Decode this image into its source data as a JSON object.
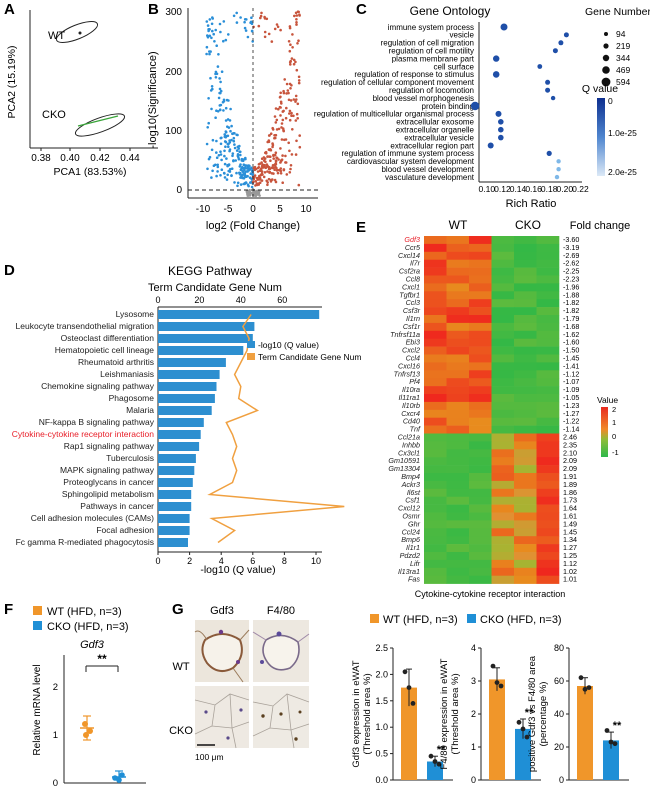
{
  "colors": {
    "blue": "#1f8fd6",
    "orange": "#f0962a",
    "red_gene": "#e8202a",
    "pca_ring": "#222",
    "volc_blue": "#2a8fd8",
    "volc_red": "#c8553d",
    "kegg_bar": "#2d8fd0",
    "kegg_line": "#f0a040",
    "go_dot": "#1f4fa8",
    "go_light": "#7fb8e8"
  },
  "panel_labels": {
    "a": "A",
    "b": "B",
    "c": "C",
    "d": "D",
    "e": "E",
    "f": "F",
    "g": "G"
  },
  "panelA": {
    "wt": "WT",
    "cko": "CKO",
    "ylabel": "PCA2 (15.19%)",
    "xlabel": "PCA1 (83.53%)",
    "xticks": [
      "0.38",
      "0.40",
      "0.42",
      "0.44"
    ]
  },
  "panelB": {
    "ylabel": "-log10(Significance)",
    "xlabel": "log2 (Fold Change)",
    "yticks": [
      "0",
      "100",
      "200",
      "300"
    ],
    "xticks": [
      "-10",
      "-5",
      "0",
      "5",
      "10"
    ]
  },
  "panelC": {
    "title": "Gene Ontology",
    "xlabel": "Rich Ratio",
    "terms": [
      "immune system process",
      "vesicle",
      "regulation of cell migration",
      "regulation of cell motility",
      "plasma membrane part",
      "cell surface",
      "regulation of response to stimulus",
      "regulation of cellular component movement",
      "regulation of locomotion",
      "blood vessel morphogenesis",
      "protein binding",
      "regulation of multicellular organismal process",
      "extracellular exosome",
      "extracellular organelle",
      "extracellular vesicle",
      "extracellular region part",
      "regulation of immune system process",
      "cardiovascular system development",
      "blood vessel development",
      "vasculature development"
    ],
    "xticks": [
      "0.10",
      "0.12",
      "0.14",
      "0.16",
      "0.18",
      "0.20",
      "0.22"
    ],
    "gene_number_title": "Gene Number",
    "gene_sizes": [
      "94",
      "219",
      "344",
      "469",
      "594"
    ],
    "q_title": "Q value",
    "q_ticks": [
      "0",
      "1.0e-25",
      "2.0e-25"
    ]
  },
  "panelD": {
    "title": "KEGG Pathway",
    "top_axis": "Term Candidate Gene Num",
    "top_ticks": [
      "0",
      "20",
      "40",
      "60"
    ],
    "bottom_ticks": [
      "0",
      "2",
      "4",
      "6",
      "8",
      "10"
    ],
    "xlabel": "-log10 (Q value)",
    "legend_bar": "-log10 (Q value)",
    "legend_line": "Term Candidate Gene Num",
    "highlight": "Cytokine-cytokine receptor interaction",
    "pathways": [
      "Lysosome",
      "Leukocyte transendothelial migration",
      "Osteoclast differentiation",
      "Hematopoietic cell lineage",
      "Rheumatoid arthritis",
      "Leishmaniasis",
      "Chemokine signaling pathway",
      "Phagosome",
      "Malaria",
      "NF-kappa B signaling pathway",
      "Cytokine-cytokine receptor interaction",
      "Rap1 signaling pathway",
      "Tuberculosis",
      "MAPK signaling pathway",
      "Proteoglycans in cancer",
      "Sphingolipid metabolism",
      "Pathways in cancer",
      "Cell adhesion molecules (CAMs)",
      "Focal adhesion",
      "Fc gamma R-mediated phagocytosis"
    ]
  },
  "panelE": {
    "wt": "WT",
    "cko": "CKO",
    "fold_title": "Fold change",
    "xlabel": "Cytokine-cytokine receptor interaction",
    "value_title": "Value",
    "value_ticks": [
      "2",
      "1",
      "0",
      "-1"
    ],
    "highlight": "Gdf3",
    "genes": [
      "Gdf3",
      "Ccr5",
      "Cxcl14",
      "Il7r",
      "Csf2ra",
      "Ccl8",
      "Cxcl1",
      "Tgfbr1",
      "Ccl3",
      "Csf3r",
      "Il1rn",
      "Csf1r",
      "Tnfrsf11a",
      "Ebi3",
      "Cxcl2",
      "Ccl4",
      "Cxcl16",
      "Tnfrsf13",
      "Pf4",
      "Il10ra",
      "Il11ra1",
      "Il10rb",
      "Cxcr4",
      "Cd40",
      "Tnf",
      "Ccl21a",
      "Inhbb",
      "Cx3cl1",
      "Gm10591",
      "Gm13304",
      "Bmp4",
      "Ackr3",
      "Il6st",
      "Csf1",
      "Cxcl12",
      "Osmr",
      "Ghr",
      "Ccl24",
      "Bmp6",
      "Il1r1",
      "Pdzd2",
      "Lifr",
      "Il13ra1",
      "Fas"
    ],
    "folds": [
      "-3.60",
      "-3.19",
      "-2.69",
      "-2.62",
      "-2.25",
      "-2.23",
      "-1.96",
      "-1.88",
      "-1.82",
      "-1.82",
      "-1.79",
      "-1.68",
      "-1.62",
      "-1.60",
      "-1.50",
      "-1.45",
      "-1.41",
      "-1.12",
      "-1.07",
      "-1.09",
      "-1.05",
      "-1.23",
      "-1.27",
      "-1.22",
      "-1.14",
      "2.46",
      "2.35",
      "2.10",
      "2.09",
      "2.09",
      "1.91",
      "1.89",
      "1.86",
      "1.73",
      "1.64",
      "1.61",
      "1.49",
      "1.45",
      "1.34",
      "1.27",
      "1.25",
      "1.12",
      "1.02",
      "1.01"
    ]
  },
  "panelF": {
    "legend_wt": "WT (HFD, n=3)",
    "legend_cko": "CKO (HFD, n=3)",
    "title": "Gdf3",
    "ylabel": "Relative mRNA level",
    "yticks": [
      "0",
      "1",
      "2"
    ],
    "sig": "**"
  },
  "panelG": {
    "col1": "Gdf3",
    "col2": "F4/80",
    "row1": "WT",
    "row2": "CKO",
    "scale": "100 μm",
    "legend_wt": "WT (HFD, n=3)",
    "legend_cko": "CKO (HFD, n=3)",
    "chart1_ylabel": "Gdf3 expression in eWAT (Threshold area %)",
    "chart1_ticks": [
      "0.0",
      "0.5",
      "1.0",
      "1.5",
      "2.0",
      "2.5"
    ],
    "chart2_ylabel": "F4/80 expression in eWAT (Threshold area %)",
    "chart2_ticks": [
      "0",
      "1",
      "2",
      "3",
      "4"
    ],
    "chart3_ylabel": "positive Gdf3 vs F4/80 area (percentage %)",
    "chart3_ticks": [
      "0",
      "20",
      "40",
      "60",
      "80"
    ],
    "sig": "**"
  }
}
